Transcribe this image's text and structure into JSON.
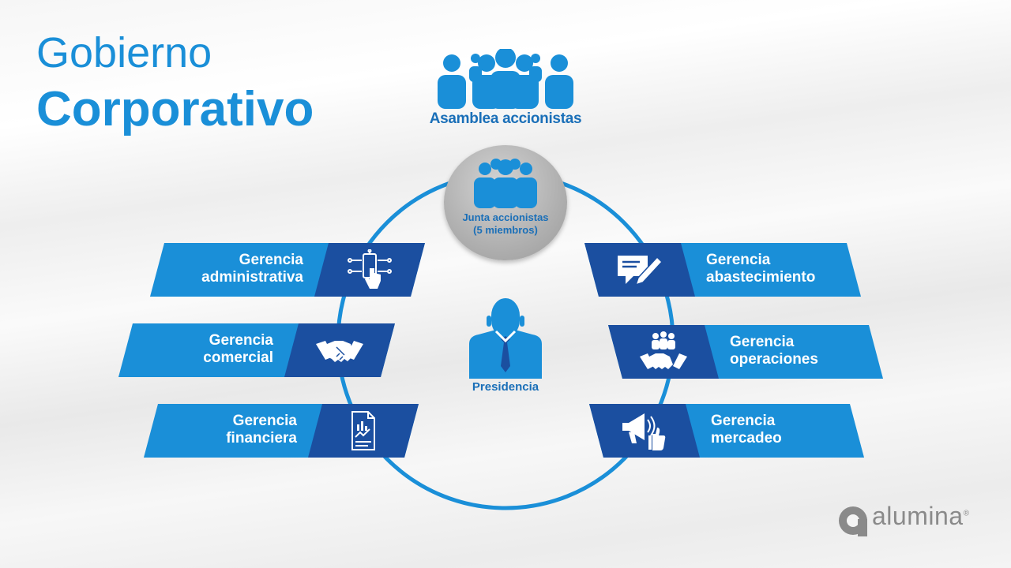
{
  "title": {
    "line1": "Gobierno",
    "line2": "Corporativo"
  },
  "top_node": {
    "label": "Asamblea accionistas",
    "icon": "people-group-icon"
  },
  "board": {
    "line1": "Junta accionistas",
    "line2": "(5 miembros)",
    "icon": "people-group-icon"
  },
  "center": {
    "label": "Presidencia",
    "icon": "businessman-icon"
  },
  "departments_left": [
    {
      "line1": "Gerencia",
      "line2": "administrativa",
      "icon": "smartphone-touch-icon"
    },
    {
      "line1": "Gerencia",
      "line2": "comercial",
      "icon": "handshake-icon"
    },
    {
      "line1": "Gerencia",
      "line2": "financiera",
      "icon": "financial-report-icon"
    }
  ],
  "departments_right": [
    {
      "line1": "Gerencia",
      "line2": "abastecimiento",
      "icon": "document-pen-icon"
    },
    {
      "line1": "Gerencia",
      "line2": "operaciones",
      "icon": "team-handshake-icon"
    },
    {
      "line1": "Gerencia",
      "line2": "mercadeo",
      "icon": "megaphone-like-icon"
    }
  ],
  "brand": {
    "name": "alumina",
    "mark": "®"
  },
  "colors": {
    "primary": "#1a8fd8",
    "dark": "#1b4fa0",
    "label": "#1a6fb8",
    "grey": "#a8a8a8"
  }
}
